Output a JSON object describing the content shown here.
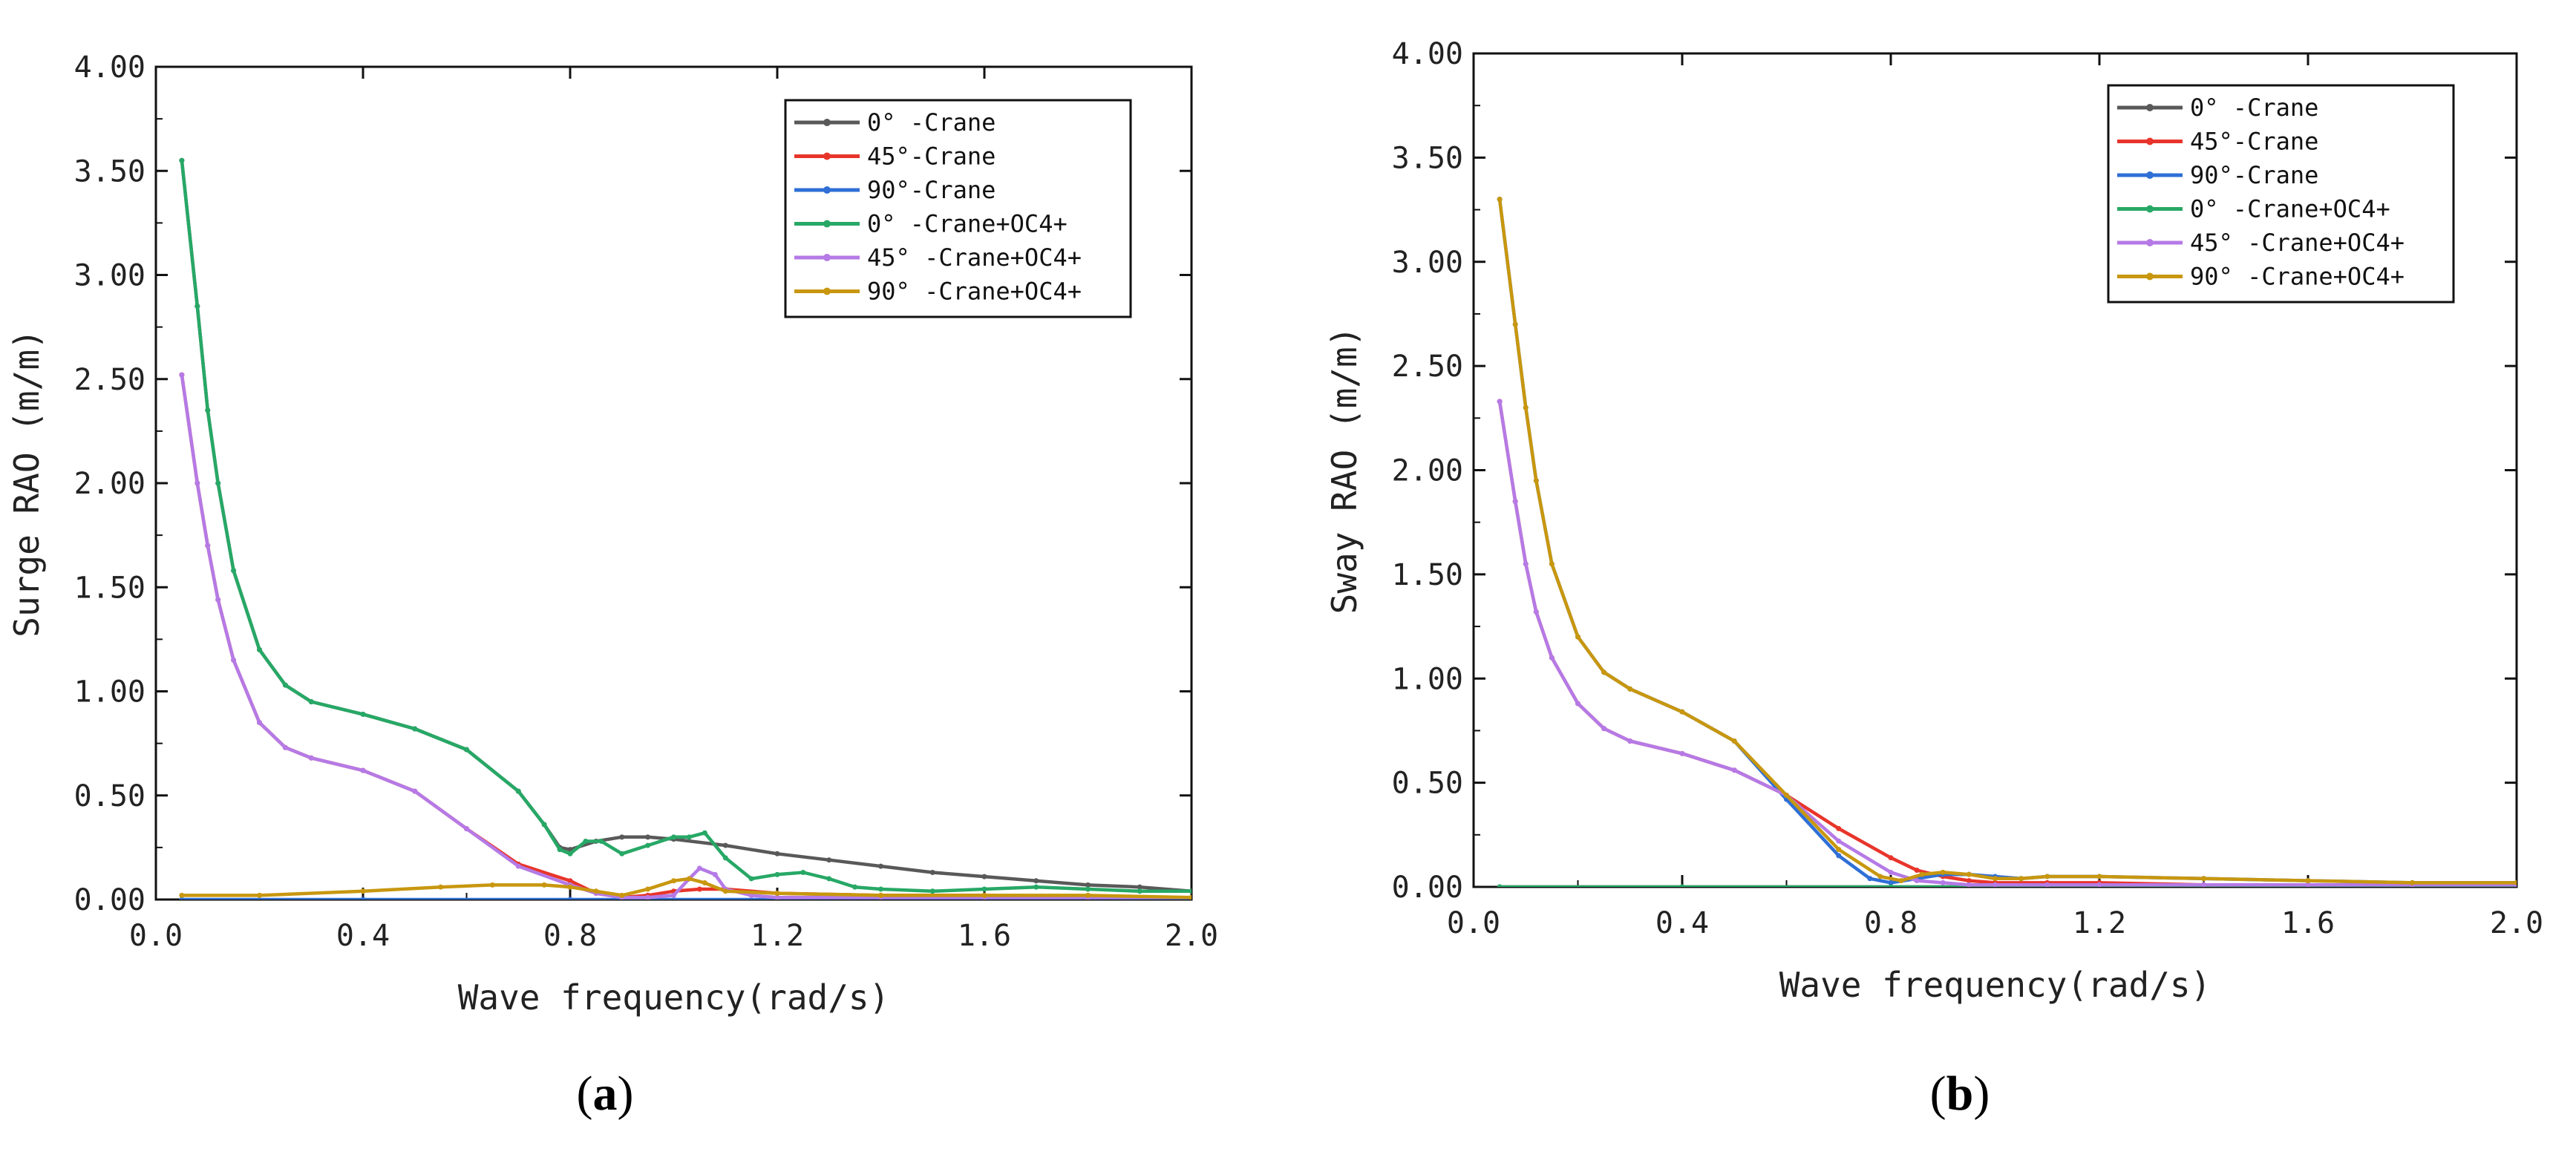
{
  "colors": {
    "0_crane": "#595959",
    "45_crane": "#e8352b",
    "90_crane": "#2f6fd6",
    "0_crane_oc4": "#27a866",
    "45_crane_oc4": "#b57ae6",
    "90_crane_oc4": "#c8970f"
  },
  "chart_data": [
    {
      "type": "line",
      "caption_open": "(",
      "caption_letter": "a",
      "caption_close": ")",
      "xlabel": "Wave frequency(rad/s)",
      "ylabel": "Surge RAO (m/m)",
      "xlim": [
        0.0,
        2.0
      ],
      "ylim": [
        0.0,
        4.0
      ],
      "xticks": [
        "0.0",
        "0.4",
        "0.8",
        "1.2",
        "1.6",
        "2.0"
      ],
      "yticks": [
        "0.00",
        "0.50",
        "1.00",
        "1.50",
        "2.00",
        "2.50",
        "3.00",
        "3.50",
        "4.00"
      ],
      "legend": "top-right",
      "series": [
        {
          "name": "0° -Crane",
          "color_key": "0_crane",
          "x": [
            0.05,
            0.08,
            0.1,
            0.12,
            0.15,
            0.2,
            0.25,
            0.3,
            0.4,
            0.5,
            0.6,
            0.7,
            0.75,
            0.78,
            0.8,
            0.85,
            0.9,
            0.95,
            1.0,
            1.1,
            1.2,
            1.3,
            1.4,
            1.5,
            1.6,
            1.7,
            1.8,
            1.9,
            2.0
          ],
          "y": [
            3.55,
            2.85,
            2.35,
            2.0,
            1.58,
            1.2,
            1.03,
            0.95,
            0.89,
            0.82,
            0.72,
            0.52,
            0.36,
            0.25,
            0.24,
            0.28,
            0.3,
            0.3,
            0.29,
            0.26,
            0.22,
            0.19,
            0.16,
            0.13,
            0.11,
            0.09,
            0.07,
            0.06,
            0.04
          ]
        },
        {
          "name": "45°-Crane",
          "color_key": "45_crane",
          "x": [
            0.05,
            0.08,
            0.1,
            0.12,
            0.15,
            0.2,
            0.25,
            0.3,
            0.4,
            0.5,
            0.6,
            0.7,
            0.8,
            0.85,
            0.9,
            0.95,
            1.0,
            1.05,
            1.1,
            1.2,
            1.4,
            1.6,
            1.8,
            2.0
          ],
          "y": [
            2.52,
            2.0,
            1.7,
            1.44,
            1.15,
            0.85,
            0.73,
            0.68,
            0.62,
            0.52,
            0.34,
            0.17,
            0.09,
            0.03,
            0.01,
            0.02,
            0.04,
            0.05,
            0.05,
            0.03,
            0.02,
            0.02,
            0.01,
            0.01
          ]
        },
        {
          "name": "90°-Crane",
          "color_key": "90_crane",
          "x": [
            0.05,
            0.4,
            0.8,
            1.2,
            1.6,
            2.0
          ],
          "y": [
            0.0,
            0.0,
            0.0,
            0.0,
            0.0,
            0.0
          ]
        },
        {
          "name": "0° -Crane+OC4+",
          "color_key": "0_crane_oc4",
          "x": [
            0.05,
            0.08,
            0.1,
            0.12,
            0.15,
            0.2,
            0.25,
            0.3,
            0.4,
            0.5,
            0.6,
            0.7,
            0.75,
            0.78,
            0.8,
            0.83,
            0.86,
            0.9,
            0.95,
            1.0,
            1.03,
            1.06,
            1.1,
            1.15,
            1.2,
            1.25,
            1.3,
            1.35,
            1.4,
            1.5,
            1.6,
            1.7,
            1.8,
            1.9,
            2.0
          ],
          "y": [
            3.55,
            2.85,
            2.35,
            2.0,
            1.58,
            1.2,
            1.03,
            0.95,
            0.89,
            0.82,
            0.72,
            0.52,
            0.36,
            0.24,
            0.22,
            0.28,
            0.28,
            0.22,
            0.26,
            0.3,
            0.3,
            0.32,
            0.2,
            0.1,
            0.12,
            0.13,
            0.1,
            0.06,
            0.05,
            0.04,
            0.05,
            0.06,
            0.05,
            0.04,
            0.04
          ]
        },
        {
          "name": "45° -Crane+OC4+",
          "color_key": "45_crane_oc4",
          "x": [
            0.05,
            0.08,
            0.1,
            0.12,
            0.15,
            0.2,
            0.25,
            0.3,
            0.4,
            0.5,
            0.6,
            0.7,
            0.8,
            0.85,
            0.9,
            0.95,
            1.0,
            1.03,
            1.05,
            1.08,
            1.1,
            1.15,
            1.2,
            1.4,
            1.6,
            1.8,
            2.0
          ],
          "y": [
            2.52,
            2.0,
            1.7,
            1.44,
            1.15,
            0.85,
            0.73,
            0.68,
            0.62,
            0.52,
            0.34,
            0.16,
            0.07,
            0.03,
            0.01,
            0.01,
            0.02,
            0.1,
            0.15,
            0.12,
            0.05,
            0.02,
            0.01,
            0.01,
            0.01,
            0.01,
            0.01
          ]
        },
        {
          "name": "90° -Crane+OC4+",
          "color_key": "90_crane_oc4",
          "x": [
            0.05,
            0.2,
            0.4,
            0.55,
            0.65,
            0.75,
            0.8,
            0.85,
            0.9,
            0.95,
            1.0,
            1.03,
            1.06,
            1.1,
            1.2,
            1.4,
            1.6,
            1.8,
            2.0
          ],
          "y": [
            0.02,
            0.02,
            0.04,
            0.06,
            0.07,
            0.07,
            0.06,
            0.04,
            0.02,
            0.05,
            0.09,
            0.1,
            0.08,
            0.04,
            0.03,
            0.02,
            0.02,
            0.02,
            0.01
          ]
        }
      ]
    },
    {
      "type": "line",
      "caption_open": "(",
      "caption_letter": "b",
      "caption_close": ")",
      "xlabel": "Wave frequency(rad/s)",
      "ylabel": "Sway RAO (m/m)",
      "xlim": [
        0.0,
        2.0
      ],
      "ylim": [
        0.0,
        4.0
      ],
      "xticks": [
        "0.0",
        "0.4",
        "0.8",
        "1.2",
        "1.6",
        "2.0"
      ],
      "yticks": [
        "0.00",
        "0.50",
        "1.00",
        "1.50",
        "2.00",
        "2.50",
        "3.00",
        "3.50",
        "4.00"
      ],
      "legend": "top-right",
      "series": [
        {
          "name": "0° -Crane",
          "color_key": "0_crane",
          "x": [
            0.05,
            0.4,
            0.8,
            1.2,
            1.6,
            2.0
          ],
          "y": [
            0.0,
            0.0,
            0.0,
            0.0,
            0.0,
            0.0
          ]
        },
        {
          "name": "45°-Crane",
          "color_key": "45_crane",
          "x": [
            0.05,
            0.08,
            0.1,
            0.12,
            0.15,
            0.2,
            0.25,
            0.3,
            0.4,
            0.5,
            0.6,
            0.7,
            0.8,
            0.85,
            0.9,
            0.95,
            1.0,
            1.1,
            1.2,
            1.4,
            1.6,
            1.8,
            2.0
          ],
          "y": [
            2.33,
            1.85,
            1.55,
            1.32,
            1.1,
            0.88,
            0.76,
            0.7,
            0.64,
            0.56,
            0.44,
            0.28,
            0.14,
            0.08,
            0.05,
            0.03,
            0.02,
            0.02,
            0.02,
            0.01,
            0.01,
            0.01,
            0.01
          ]
        },
        {
          "name": "90°-Crane",
          "color_key": "90_crane",
          "x": [
            0.05,
            0.08,
            0.1,
            0.12,
            0.15,
            0.2,
            0.25,
            0.3,
            0.4,
            0.5,
            0.6,
            0.7,
            0.76,
            0.8,
            0.85,
            0.9,
            0.95,
            1.0,
            1.05,
            1.1,
            1.2,
            1.4,
            1.6,
            1.8,
            2.0
          ],
          "y": [
            3.3,
            2.7,
            2.3,
            1.95,
            1.55,
            1.2,
            1.03,
            0.95,
            0.84,
            0.7,
            0.42,
            0.15,
            0.04,
            0.02,
            0.04,
            0.06,
            0.06,
            0.05,
            0.04,
            0.05,
            0.05,
            0.04,
            0.03,
            0.02,
            0.02
          ]
        },
        {
          "name": "0° -Crane+OC4+",
          "color_key": "0_crane_oc4",
          "x": [
            0.05,
            0.4,
            0.8,
            1.2,
            1.6,
            2.0
          ],
          "y": [
            0.0,
            0.0,
            0.0,
            0.0,
            0.0,
            0.0
          ]
        },
        {
          "name": "45° -Crane+OC4+",
          "color_key": "45_crane_oc4",
          "x": [
            0.05,
            0.08,
            0.1,
            0.12,
            0.15,
            0.2,
            0.25,
            0.3,
            0.4,
            0.5,
            0.6,
            0.7,
            0.8,
            0.85,
            0.9,
            0.95,
            1.0,
            1.1,
            1.2,
            1.4,
            1.6,
            1.8,
            2.0
          ],
          "y": [
            2.33,
            1.85,
            1.55,
            1.32,
            1.1,
            0.88,
            0.76,
            0.7,
            0.64,
            0.56,
            0.44,
            0.22,
            0.07,
            0.03,
            0.02,
            0.01,
            0.01,
            0.01,
            0.01,
            0.01,
            0.01,
            0.01,
            0.01
          ]
        },
        {
          "name": "90° -Crane+OC4+",
          "color_key": "90_crane_oc4",
          "x": [
            0.05,
            0.08,
            0.1,
            0.12,
            0.15,
            0.2,
            0.25,
            0.3,
            0.4,
            0.5,
            0.6,
            0.7,
            0.78,
            0.82,
            0.86,
            0.9,
            0.95,
            1.0,
            1.05,
            1.1,
            1.2,
            1.4,
            1.6,
            1.8,
            2.0
          ],
          "y": [
            3.3,
            2.7,
            2.3,
            1.95,
            1.55,
            1.2,
            1.03,
            0.95,
            0.84,
            0.7,
            0.44,
            0.18,
            0.05,
            0.03,
            0.06,
            0.07,
            0.06,
            0.04,
            0.04,
            0.05,
            0.05,
            0.04,
            0.03,
            0.02,
            0.02
          ]
        }
      ]
    }
  ]
}
